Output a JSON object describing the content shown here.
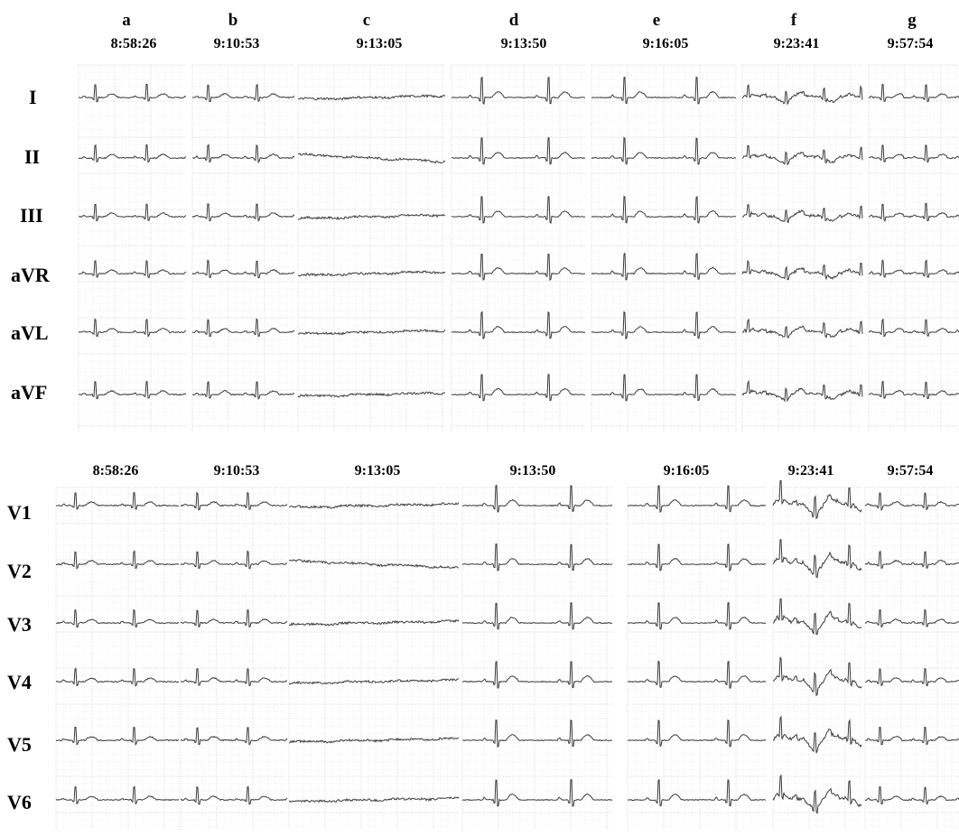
{
  "columns": [
    {
      "letter": "a",
      "time": "8:58:26"
    },
    {
      "letter": "b",
      "time": "9:10:53"
    },
    {
      "letter": "c",
      "time": "9:13:05"
    },
    {
      "letter": "d",
      "time": "9:13:50"
    },
    {
      "letter": "e",
      "time": "9:16:05"
    },
    {
      "letter": "f",
      "time": "9:23:41"
    },
    {
      "letter": "g",
      "time": "9:57:54"
    }
  ],
  "limb_leads": [
    "I",
    "II",
    "III",
    "aVR",
    "aVL",
    "aVF"
  ],
  "precordial_leads": [
    "V1",
    "V2",
    "V3",
    "V4",
    "V5",
    "V6"
  ],
  "precordial_times": [
    "8:58:26",
    "9:10:53",
    "9:13:05",
    "9:13:50",
    "9:16:05",
    "9:23:41",
    "9:57:54"
  ],
  "colors": {
    "grid": "#d4d4d4",
    "trace": "#3a3a3a",
    "text": "#000000"
  }
}
